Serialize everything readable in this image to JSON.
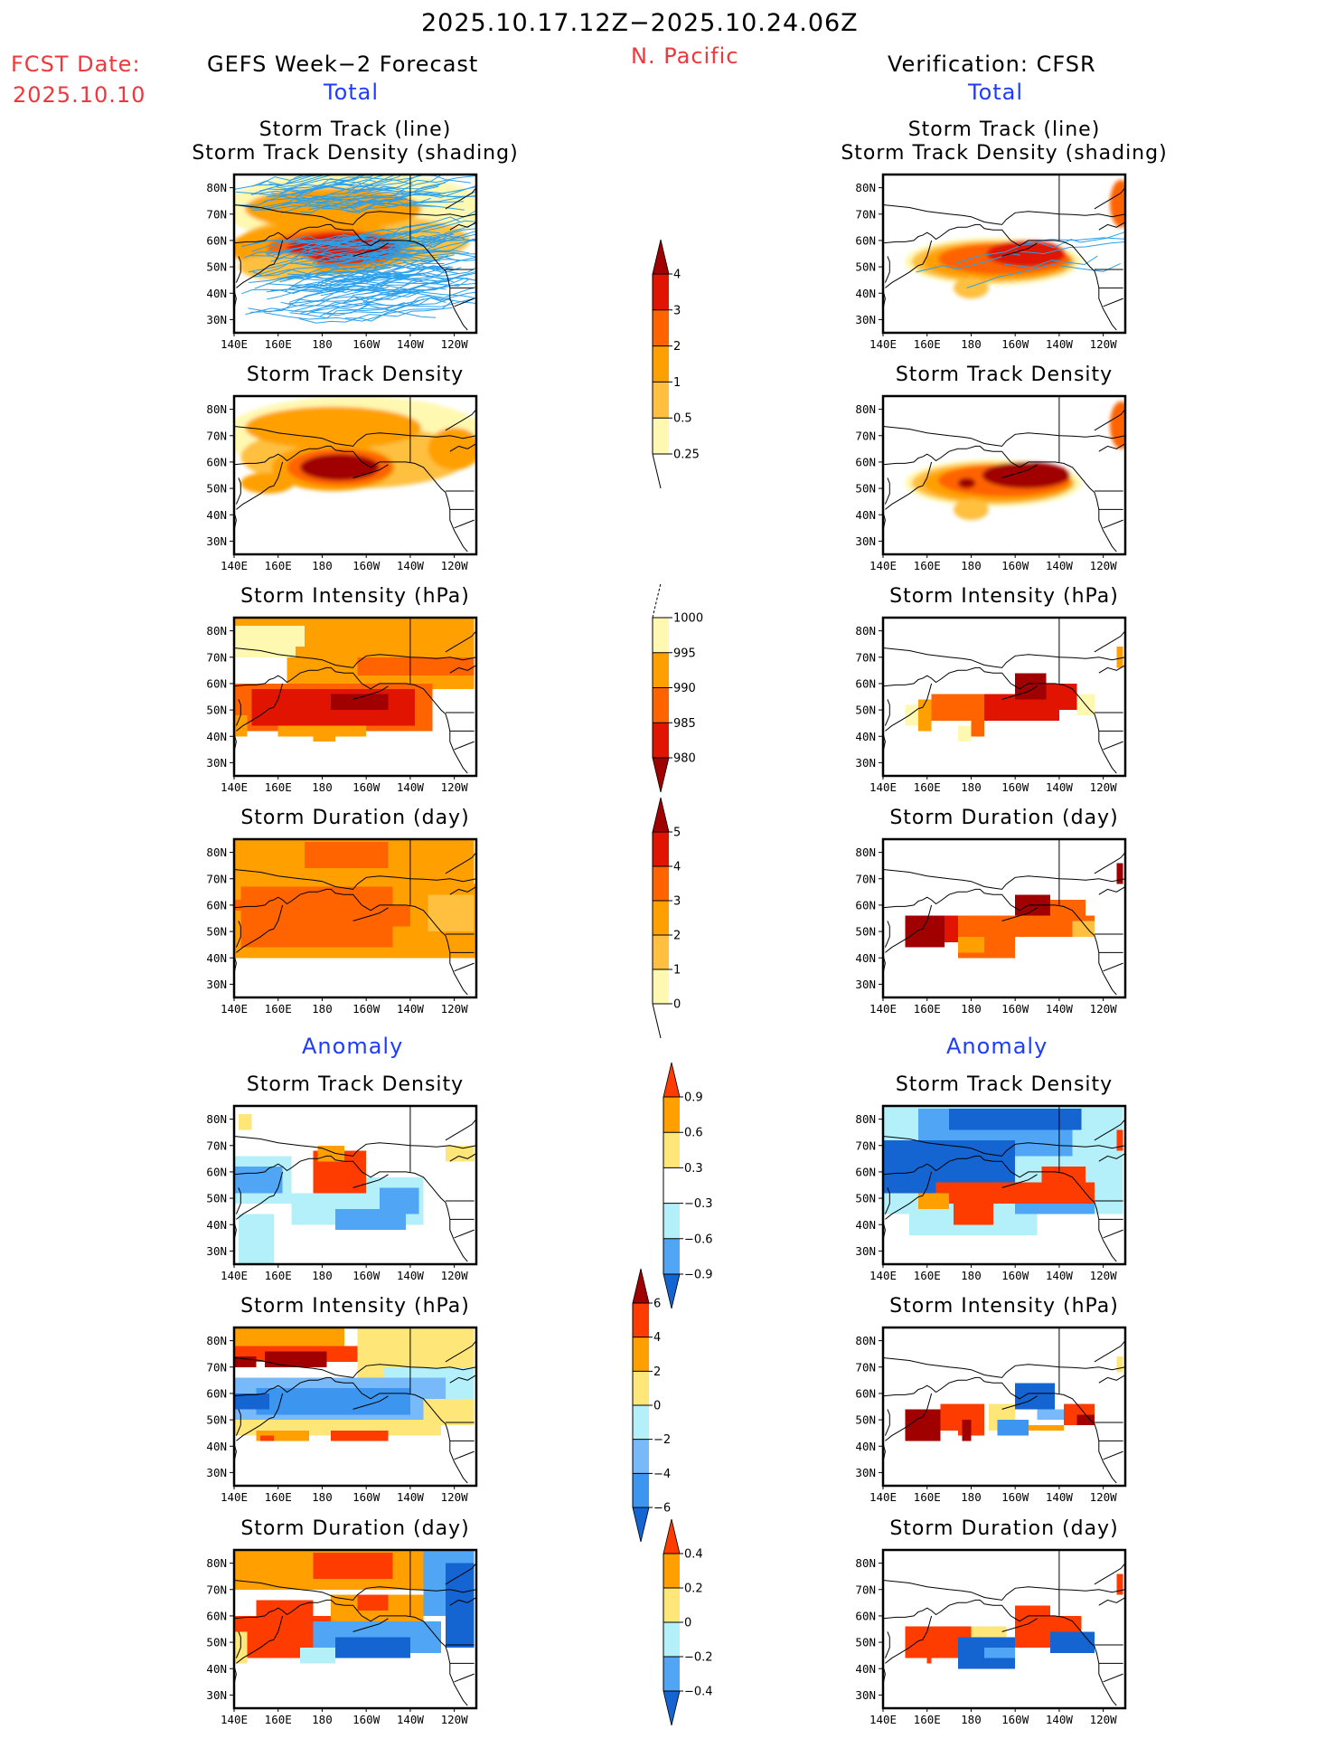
{
  "header": {
    "period": "2025.10.17.12Z−2025.10.24.06Z",
    "region": "N. Pacific",
    "fcst_label": "FCST Date:",
    "fcst_date": "2025.10.10",
    "left_title": "GEFS Week−2 Forecast",
    "right_title": "Verification: CFSR",
    "total_label": "Total",
    "anomaly_label": "Anomaly"
  },
  "colors": {
    "title_red": "#f0383c",
    "section_blue": "#1e3cff",
    "track_line": "#2aa0ec"
  },
  "axes": {
    "lon_range": [
      140,
      250
    ],
    "lat_range": [
      25,
      85
    ],
    "lat_ticks": [
      {
        "v": 80,
        "label": "80N"
      },
      {
        "v": 70,
        "label": "70N"
      },
      {
        "v": 60,
        "label": "60N"
      },
      {
        "v": 50,
        "label": "50N"
      },
      {
        "v": 40,
        "label": "40N"
      },
      {
        "v": 30,
        "label": "30N"
      }
    ],
    "lon_ticks": [
      {
        "v": 140,
        "label": "140E"
      },
      {
        "v": 160,
        "label": "160E"
      },
      {
        "v": 180,
        "label": "180"
      },
      {
        "v": 200,
        "label": "160W"
      },
      {
        "v": 220,
        "label": "140W"
      },
      {
        "v": 240,
        "label": "120W"
      }
    ]
  },
  "colorbars": {
    "density": {
      "name": "storm-track-density-colorbar",
      "levels": [
        "0.25",
        "0.5",
        "1",
        "2",
        "3",
        "4"
      ],
      "colors": [
        "#fff8b0",
        "#ffc040",
        "#ffa000",
        "#ff6400",
        "#e01400",
        "#a00000"
      ],
      "below": "none",
      "above": "#a00000"
    },
    "intensity": {
      "name": "storm-intensity-colorbar",
      "levels": [
        "1000",
        "995",
        "990",
        "985",
        "980"
      ],
      "colors": [
        "#fff8b0",
        "#ffa000",
        "#ff6400",
        "#e01400",
        "#a00000"
      ],
      "reversed": true
    },
    "duration": {
      "name": "storm-duration-colorbar",
      "levels": [
        "0",
        "1",
        "2",
        "3",
        "4",
        "5"
      ],
      "colors": [
        "#fff8b0",
        "#ffc040",
        "#ffa000",
        "#ff6400",
        "#e01400",
        "#a00000"
      ]
    },
    "density_anom": {
      "name": "density-anomaly-colorbar",
      "levels": [
        "0.9",
        "0.6",
        "0.3",
        "−0.3",
        "−0.6",
        "−0.9"
      ],
      "colors": [
        "#ff3c00",
        "#ffa000",
        "#ffe678",
        "#ffffff",
        "#b4f0fa",
        "#50a5f5",
        "#1464d2"
      ]
    },
    "intensity_anom": {
      "name": "intensity-anomaly-colorbar",
      "levels": [
        "6",
        "4",
        "2",
        "0",
        "−2",
        "−4",
        "−6"
      ],
      "colors": [
        "#a00000",
        "#ff3c00",
        "#ffa000",
        "#ffe678",
        "#b4f0fa",
        "#78b9fa",
        "#3c96f0",
        "#1464d2"
      ]
    },
    "duration_anom": {
      "name": "duration-anomaly-colorbar",
      "levels": [
        "0.4",
        "0.2",
        "0",
        "−0.2",
        "−0.4"
      ],
      "colors": [
        "#ff3c00",
        "#ffa000",
        "#ffe678",
        "#b4f0fa",
        "#50a5f5",
        "#1464d2"
      ]
    }
  },
  "panels": [
    {
      "id": "fc-track",
      "column": "left",
      "row": 0,
      "title1": "Storm Track (line)",
      "title2": "Storm Track Density (shading)",
      "palette": "density",
      "tracks": "many",
      "blobs": [
        [
          195,
          72,
          60,
          14,
          0
        ],
        [
          195,
          60,
          52,
          10,
          1
        ],
        [
          185,
          72,
          40,
          8,
          2
        ],
        [
          180,
          57,
          42,
          10,
          2
        ],
        [
          185,
          57,
          30,
          7,
          3
        ],
        [
          190,
          57,
          26,
          6,
          4
        ],
        [
          160,
          50,
          18,
          5,
          1
        ]
      ]
    },
    {
      "id": "vf-track",
      "column": "right",
      "row": 0,
      "title1": "Storm Track (line)",
      "title2": "Storm Track Density (shading)",
      "palette": "density",
      "tracks": "few",
      "blobs": [
        [
          190,
          52,
          40,
          9,
          0
        ],
        [
          190,
          52,
          37,
          8,
          1
        ],
        [
          192,
          52,
          34,
          7,
          2
        ],
        [
          195,
          53,
          30,
          6,
          3
        ],
        [
          205,
          55,
          18,
          5,
          4
        ],
        [
          180,
          42,
          8,
          4,
          1
        ],
        [
          248,
          74,
          5,
          9,
          3
        ]
      ]
    },
    {
      "id": "fc-density",
      "column": "left",
      "row": 1,
      "title1": "Storm Track Density",
      "palette": "density",
      "blobs": [
        [
          195,
          70,
          60,
          15,
          0
        ],
        [
          195,
          62,
          52,
          12,
          1
        ],
        [
          185,
          73,
          40,
          8,
          2
        ],
        [
          185,
          58,
          28,
          9,
          2
        ],
        [
          188,
          58,
          24,
          7,
          3
        ],
        [
          188,
          58,
          18,
          5,
          5
        ],
        [
          155,
          52,
          12,
          4,
          2
        ],
        [
          240,
          65,
          12,
          8,
          2
        ]
      ]
    },
    {
      "id": "vf-density",
      "column": "right",
      "row": 1,
      "title1": "Storm Track Density",
      "palette": "density",
      "blobs": [
        [
          190,
          52,
          40,
          9,
          0
        ],
        [
          190,
          52,
          37,
          8,
          1
        ],
        [
          192,
          52,
          34,
          7,
          2
        ],
        [
          195,
          53,
          30,
          6,
          3
        ],
        [
          205,
          55,
          20,
          5,
          5
        ],
        [
          178,
          52,
          4,
          2,
          5
        ],
        [
          180,
          42,
          8,
          4,
          1
        ],
        [
          248,
          74,
          5,
          9,
          3
        ]
      ]
    },
    {
      "id": "fc-intensity",
      "column": "left",
      "row": 2,
      "title1": "Storm Intensity (hPa)",
      "palette": "intensity",
      "cells": [
        [
          140,
          249,
          70,
          85,
          1
        ],
        [
          140,
          172,
          74,
          82,
          0
        ],
        [
          140,
          168,
          70,
          75,
          0
        ],
        [
          164,
          249,
          58,
          70,
          1
        ],
        [
          196,
          249,
          63,
          70,
          2
        ],
        [
          140,
          230,
          42,
          60,
          2
        ],
        [
          148,
          222,
          44,
          58,
          3
        ],
        [
          160,
          200,
          40,
          44,
          1
        ],
        [
          176,
          186,
          38,
          40,
          1
        ],
        [
          140,
          146,
          40,
          48,
          1
        ],
        [
          162,
          220,
          46,
          56,
          3
        ],
        [
          184,
          210,
          50,
          56,
          4
        ]
      ]
    },
    {
      "id": "vf-intensity",
      "column": "right",
      "row": 2,
      "title1": "Storm Intensity (hPa)",
      "palette": "intensity",
      "cells": [
        [
          150,
          157,
          44,
          52,
          0
        ],
        [
          156,
          162,
          42,
          54,
          1
        ],
        [
          162,
          196,
          46,
          56,
          2
        ],
        [
          174,
          180,
          38,
          44,
          0
        ],
        [
          180,
          186,
          40,
          48,
          2
        ],
        [
          186,
          220,
          46,
          56,
          3
        ],
        [
          200,
          214,
          54,
          64,
          4
        ],
        [
          214,
          228,
          50,
          60,
          3
        ],
        [
          228,
          236,
          48,
          56,
          0
        ],
        [
          246,
          249,
          66,
          74,
          1
        ]
      ]
    },
    {
      "id": "fc-duration",
      "column": "left",
      "row": 3,
      "title1": "Storm Duration (day)",
      "palette": "duration",
      "cells": [
        [
          140,
          249,
          68,
          85,
          2
        ],
        [
          172,
          210,
          74,
          84,
          3
        ],
        [
          140,
          250,
          40,
          68,
          2
        ],
        [
          143,
          212,
          44,
          67,
          3
        ],
        [
          140,
          146,
          58,
          62,
          3
        ],
        [
          200,
          220,
          52,
          60,
          3
        ],
        [
          228,
          249,
          50,
          64,
          1
        ]
      ]
    },
    {
      "id": "vf-duration",
      "column": "right",
      "row": 3,
      "title1": "Storm Duration (day)",
      "palette": "duration",
      "cells": [
        [
          150,
          168,
          44,
          56,
          5
        ],
        [
          168,
          174,
          46,
          56,
          4
        ],
        [
          174,
          200,
          40,
          56,
          3
        ],
        [
          174,
          186,
          42,
          48,
          2
        ],
        [
          200,
          236,
          48,
          56,
          3
        ],
        [
          200,
          216,
          56,
          64,
          5
        ],
        [
          216,
          232,
          54,
          62,
          3
        ],
        [
          226,
          236,
          48,
          54,
          1
        ],
        [
          246,
          249,
          68,
          76,
          5
        ]
      ]
    },
    {
      "id": "fc-density-anom",
      "column": "left",
      "row": 4,
      "title1": "Storm Track Density",
      "palette": "density_anom",
      "cells": [
        [
          142,
          148,
          76,
          82,
          2
        ],
        [
          140,
          166,
          48,
          66,
          4
        ],
        [
          140,
          162,
          52,
          62,
          5
        ],
        [
          176,
          200,
          52,
          68,
          0
        ],
        [
          178,
          190,
          64,
          70,
          1
        ],
        [
          166,
          200,
          40,
          52,
          4
        ],
        [
          200,
          226,
          40,
          58,
          4
        ],
        [
          206,
          224,
          44,
          54,
          5
        ],
        [
          186,
          218,
          38,
          46,
          5
        ],
        [
          142,
          158,
          25,
          44,
          4
        ],
        [
          236,
          249,
          64,
          70,
          2
        ]
      ]
    },
    {
      "id": "vf-density-anom",
      "column": "right",
      "row": 4,
      "title1": "Storm Track Density",
      "palette": "density_anom",
      "cells": [
        [
          140,
          249,
          44,
          85,
          4
        ],
        [
          156,
          226,
          66,
          84,
          5
        ],
        [
          140,
          200,
          52,
          72,
          6
        ],
        [
          170,
          230,
          76,
          84,
          6
        ],
        [
          152,
          210,
          36,
          50,
          4
        ],
        [
          164,
          236,
          48,
          56,
          0
        ],
        [
          156,
          170,
          46,
          52,
          1
        ],
        [
          172,
          190,
          40,
          48,
          0
        ],
        [
          212,
          232,
          54,
          62,
          0
        ],
        [
          200,
          236,
          44,
          48,
          5
        ],
        [
          246,
          249,
          68,
          76,
          0
        ]
      ]
    },
    {
      "id": "fc-intensity-anom",
      "column": "left",
      "row": 5,
      "title1": "Storm Intensity (hPa)",
      "palette": "intensity_anom",
      "cells": [
        [
          140,
          190,
          78,
          85,
          2
        ],
        [
          140,
          196,
          72,
          78,
          1
        ],
        [
          154,
          182,
          70,
          76,
          0
        ],
        [
          140,
          150,
          70,
          74,
          0
        ],
        [
          196,
          249,
          66,
          85,
          3
        ],
        [
          208,
          249,
          50,
          70,
          4
        ],
        [
          140,
          236,
          50,
          66,
          5
        ],
        [
          150,
          220,
          52,
          62,
          6
        ],
        [
          140,
          156,
          54,
          60,
          7
        ],
        [
          140,
          234,
          44,
          50,
          3
        ],
        [
          150,
          174,
          42,
          46,
          2
        ],
        [
          184,
          210,
          42,
          46,
          1
        ],
        [
          152,
          158,
          42,
          44,
          1
        ],
        [
          226,
          249,
          48,
          58,
          3
        ]
      ]
    },
    {
      "id": "vf-intensity-anom",
      "column": "right",
      "row": 5,
      "title1": "Storm Intensity (hPa)",
      "palette": "intensity_anom",
      "cells": [
        [
          150,
          166,
          42,
          54,
          0
        ],
        [
          166,
          174,
          46,
          56,
          1
        ],
        [
          174,
          186,
          44,
          56,
          1
        ],
        [
          176,
          180,
          42,
          50,
          0
        ],
        [
          188,
          200,
          46,
          56,
          3
        ],
        [
          192,
          206,
          44,
          50,
          6
        ],
        [
          200,
          218,
          54,
          64,
          7
        ],
        [
          210,
          226,
          50,
          54,
          5
        ],
        [
          206,
          222,
          46,
          48,
          2
        ],
        [
          222,
          236,
          48,
          56,
          1
        ],
        [
          228,
          236,
          48,
          52,
          0
        ],
        [
          246,
          249,
          68,
          74,
          3
        ]
      ]
    },
    {
      "id": "fc-duration-anom",
      "column": "left",
      "row": 6,
      "title1": "Storm Duration (day)",
      "palette": "duration_anom",
      "cells": [
        [
          140,
          226,
          70,
          85,
          1
        ],
        [
          176,
          212,
          74,
          84,
          0
        ],
        [
          226,
          249,
          60,
          85,
          4
        ],
        [
          236,
          249,
          48,
          80,
          5
        ],
        [
          140,
          188,
          44,
          60,
          0
        ],
        [
          150,
          176,
          54,
          66,
          0
        ],
        [
          184,
          226,
          58,
          68,
          1
        ],
        [
          196,
          210,
          62,
          68,
          0
        ],
        [
          176,
          234,
          46,
          58,
          4
        ],
        [
          186,
          220,
          44,
          52,
          5
        ],
        [
          170,
          186,
          42,
          48,
          3
        ],
        [
          140,
          146,
          42,
          54,
          2
        ]
      ]
    },
    {
      "id": "vf-duration-anom",
      "column": "right",
      "row": 6,
      "title1": "Storm Duration (day)",
      "palette": "duration_anom",
      "cells": [
        [
          150,
          180,
          44,
          56,
          0
        ],
        [
          160,
          162,
          42,
          46,
          0
        ],
        [
          200,
          216,
          56,
          64,
          0
        ],
        [
          200,
          230,
          48,
          60,
          0
        ],
        [
          180,
          196,
          48,
          56,
          2
        ],
        [
          174,
          200,
          40,
          52,
          5
        ],
        [
          186,
          200,
          44,
          48,
          4
        ],
        [
          216,
          236,
          46,
          54,
          5
        ],
        [
          246,
          249,
          68,
          76,
          0
        ]
      ]
    }
  ]
}
